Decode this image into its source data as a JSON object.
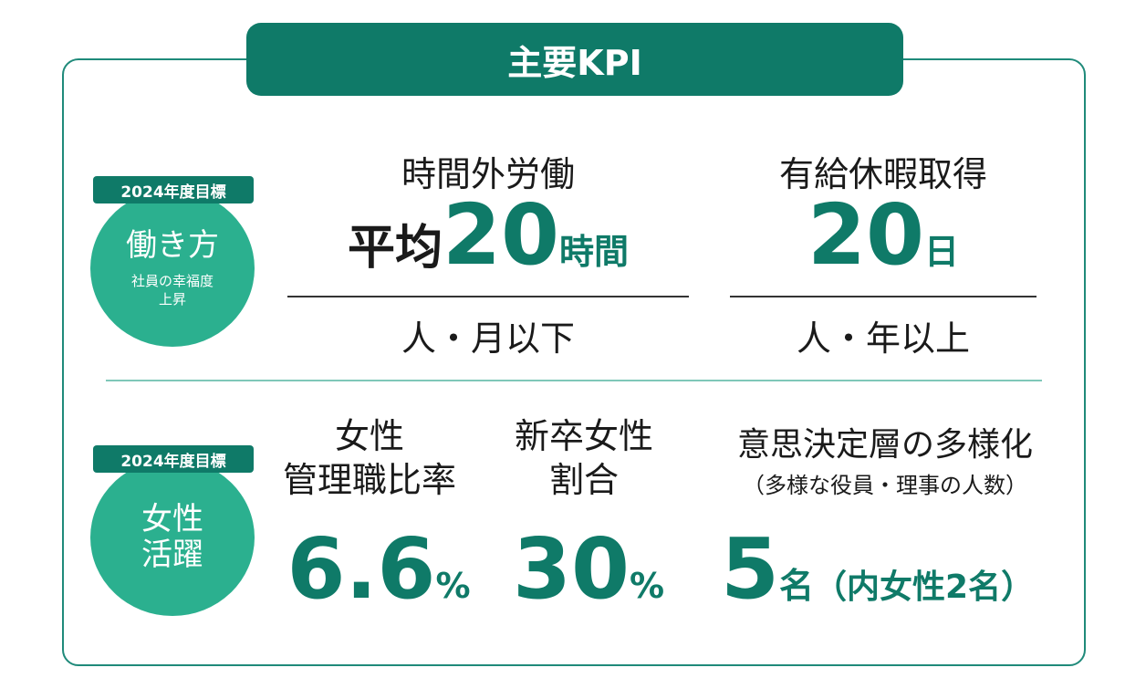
{
  "header": {
    "title": "主要KPI"
  },
  "rows": [
    {
      "badge": "2024年度目標",
      "circle": {
        "main": "働き方",
        "sub1": "社員の幸福度",
        "sub2": "上昇"
      },
      "kpis": [
        {
          "label": "時間外労働",
          "prefix": "平均",
          "value": "20",
          "unit": "時間",
          "note": "人・月以下"
        },
        {
          "label": "有給休暇取得",
          "value": "20",
          "unit": "日",
          "note": "人・年以上"
        }
      ]
    },
    {
      "badge": "2024年度目標",
      "circle": {
        "main1": "女性",
        "main2": "活躍"
      },
      "kpis": [
        {
          "label1": "女性",
          "label2": "管理職比率",
          "value": "6.6",
          "unit": "%"
        },
        {
          "label1": "新卒女性",
          "label2": "割合",
          "value": "30",
          "unit": "%"
        },
        {
          "label": "意思決定層の多様化",
          "sublabel": "（多様な役員・理事の人数）",
          "value": "5",
          "unit": "名",
          "suffix": "（内女性2名）"
        }
      ]
    }
  ],
  "colors": {
    "primary": "#0f7a68",
    "circle": "#2bb08f",
    "divider": "#7fc7b8"
  }
}
